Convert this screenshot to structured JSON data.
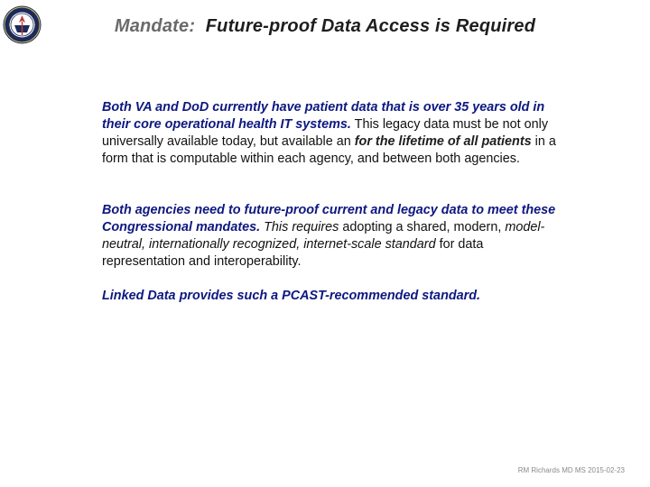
{
  "header": {
    "seal_icon": "va-seal-icon",
    "title_lead": "Mandate:",
    "title_rest": "Future-proof Data Access is Required"
  },
  "paragraphs": {
    "p1": {
      "bold1": "Both VA and DoD currently have patient data that is over 35 years old in their core operational health IT systems.",
      "text1": " This legacy data must be not only universally available today, but available an ",
      "bold2": "for the lifetime of all patients",
      "text2": " in a form that is computable within each agency, and between both agencies."
    },
    "p2": {
      "bold1": "Both agencies need to future-proof current and legacy  data to meet these Congressional mandates.",
      "italic1": "This requires",
      "text1": " adopting a shared, modern, ",
      "italic2": "model-neutral, internationally recognized, internet-scale standard",
      "text2": " for data representation and interoperability."
    },
    "p3": {
      "bold1": "Linked Data provides such a PCAST-recommended standard."
    }
  },
  "footer": {
    "credit": "RM Richards MD MS  2015-02-23"
  },
  "colors": {
    "emphasis_blue": "#0d1880",
    "title_gray": "#6a6a6a"
  }
}
